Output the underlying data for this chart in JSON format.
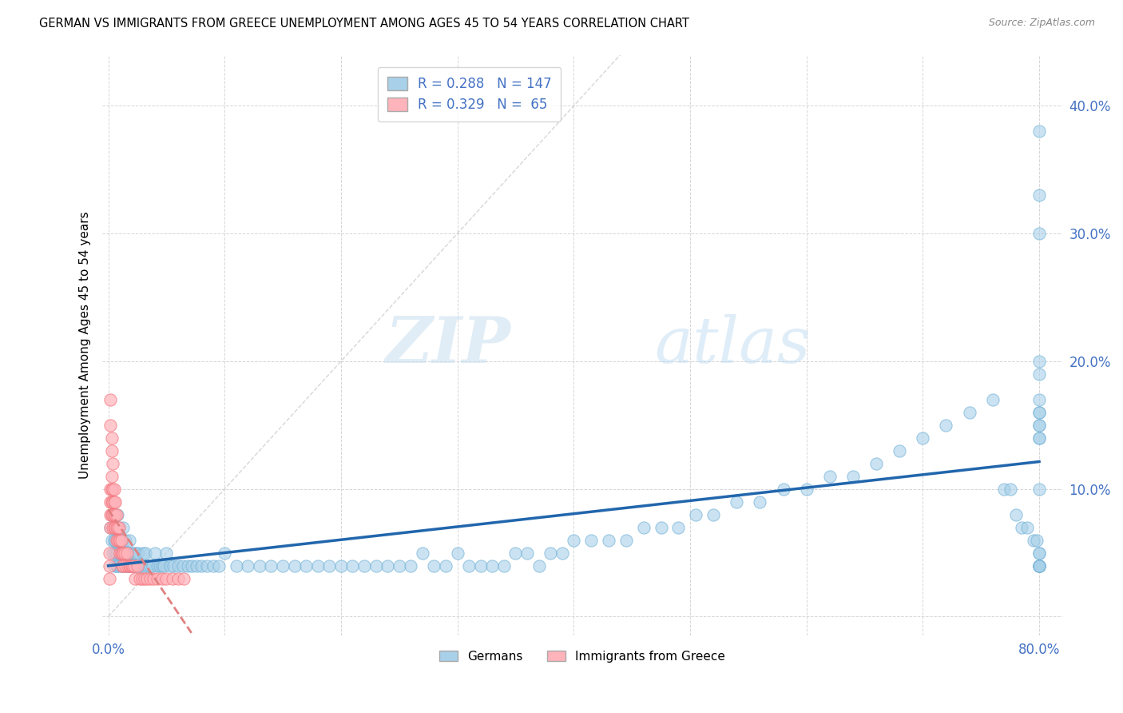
{
  "title": "GERMAN VS IMMIGRANTS FROM GREECE UNEMPLOYMENT AMONG AGES 45 TO 54 YEARS CORRELATION CHART",
  "source": "Source: ZipAtlas.com",
  "tick_color": "#4472c4",
  "ylabel": "Unemployment Among Ages 45 to 54 years",
  "xlim": [
    -0.005,
    0.82
  ],
  "ylim": [
    -0.015,
    0.44
  ],
  "xticks": [
    0.0,
    0.1,
    0.2,
    0.3,
    0.4,
    0.5,
    0.6,
    0.7,
    0.8
  ],
  "yticks": [
    0.0,
    0.1,
    0.2,
    0.3,
    0.4
  ],
  "german_color": "#a8d0e8",
  "german_edge_color": "#6baed6",
  "greece_color": "#ffb3ba",
  "greece_edge_color": "#f4777f",
  "german_line_color": "#2166ac",
  "greece_line_color": "#e08080",
  "diagonal_color": "#cccccc",
  "R_german": 0.288,
  "N_german": 147,
  "R_greece": 0.329,
  "N_greece": 65,
  "legend_labels": [
    "Germans",
    "Immigrants from Greece"
  ],
  "watermark_zip": "ZIP",
  "watermark_atlas": "atlas",
  "background_color": "#ffffff",
  "grid_color": "#cccccc",
  "x_german": [
    0.002,
    0.003,
    0.003,
    0.004,
    0.004,
    0.005,
    0.005,
    0.005,
    0.006,
    0.006,
    0.006,
    0.007,
    0.007,
    0.007,
    0.008,
    0.008,
    0.008,
    0.009,
    0.009,
    0.009,
    0.01,
    0.01,
    0.011,
    0.011,
    0.012,
    0.012,
    0.013,
    0.013,
    0.014,
    0.015,
    0.015,
    0.016,
    0.016,
    0.017,
    0.018,
    0.018,
    0.019,
    0.02,
    0.021,
    0.022,
    0.023,
    0.024,
    0.025,
    0.026,
    0.027,
    0.028,
    0.03,
    0.031,
    0.032,
    0.034,
    0.036,
    0.038,
    0.04,
    0.042,
    0.044,
    0.046,
    0.048,
    0.05,
    0.053,
    0.056,
    0.06,
    0.064,
    0.068,
    0.072,
    0.076,
    0.08,
    0.085,
    0.09,
    0.095,
    0.1,
    0.11,
    0.12,
    0.13,
    0.14,
    0.15,
    0.16,
    0.17,
    0.18,
    0.19,
    0.2,
    0.21,
    0.22,
    0.23,
    0.24,
    0.25,
    0.26,
    0.27,
    0.28,
    0.29,
    0.3,
    0.31,
    0.32,
    0.33,
    0.34,
    0.35,
    0.36,
    0.37,
    0.38,
    0.39,
    0.4,
    0.415,
    0.43,
    0.445,
    0.46,
    0.475,
    0.49,
    0.505,
    0.52,
    0.54,
    0.56,
    0.58,
    0.6,
    0.62,
    0.64,
    0.66,
    0.68,
    0.7,
    0.72,
    0.74,
    0.76,
    0.77,
    0.775,
    0.78,
    0.785,
    0.79,
    0.795,
    0.798,
    0.8,
    0.8,
    0.8,
    0.8,
    0.8,
    0.8,
    0.8,
    0.8,
    0.8,
    0.8,
    0.8,
    0.8,
    0.8,
    0.8,
    0.8,
    0.8,
    0.8,
    0.8,
    0.8,
    0.8
  ],
  "y_german": [
    0.07,
    0.06,
    0.08,
    0.05,
    0.09,
    0.04,
    0.06,
    0.07,
    0.05,
    0.08,
    0.06,
    0.04,
    0.07,
    0.05,
    0.06,
    0.08,
    0.04,
    0.05,
    0.07,
    0.06,
    0.05,
    0.04,
    0.06,
    0.05,
    0.04,
    0.06,
    0.05,
    0.07,
    0.04,
    0.05,
    0.06,
    0.04,
    0.05,
    0.04,
    0.05,
    0.06,
    0.04,
    0.05,
    0.04,
    0.05,
    0.04,
    0.05,
    0.04,
    0.05,
    0.04,
    0.04,
    0.05,
    0.04,
    0.05,
    0.04,
    0.04,
    0.04,
    0.05,
    0.04,
    0.04,
    0.04,
    0.04,
    0.05,
    0.04,
    0.04,
    0.04,
    0.04,
    0.04,
    0.04,
    0.04,
    0.04,
    0.04,
    0.04,
    0.04,
    0.05,
    0.04,
    0.04,
    0.04,
    0.04,
    0.04,
    0.04,
    0.04,
    0.04,
    0.04,
    0.04,
    0.04,
    0.04,
    0.04,
    0.04,
    0.04,
    0.04,
    0.05,
    0.04,
    0.04,
    0.05,
    0.04,
    0.04,
    0.04,
    0.04,
    0.05,
    0.05,
    0.04,
    0.05,
    0.05,
    0.06,
    0.06,
    0.06,
    0.06,
    0.07,
    0.07,
    0.07,
    0.08,
    0.08,
    0.09,
    0.09,
    0.1,
    0.1,
    0.11,
    0.11,
    0.12,
    0.13,
    0.14,
    0.15,
    0.16,
    0.17,
    0.1,
    0.1,
    0.08,
    0.07,
    0.07,
    0.06,
    0.06,
    0.38,
    0.33,
    0.3,
    0.2,
    0.19,
    0.17,
    0.16,
    0.16,
    0.15,
    0.15,
    0.14,
    0.14,
    0.1,
    0.05,
    0.05,
    0.04,
    0.04,
    0.04,
    0.04,
    0.04
  ],
  "x_greece": [
    0.001,
    0.001,
    0.001,
    0.002,
    0.002,
    0.002,
    0.002,
    0.003,
    0.003,
    0.003,
    0.003,
    0.004,
    0.004,
    0.004,
    0.004,
    0.005,
    0.005,
    0.005,
    0.005,
    0.006,
    0.006,
    0.006,
    0.007,
    0.007,
    0.007,
    0.008,
    0.008,
    0.009,
    0.009,
    0.01,
    0.01,
    0.011,
    0.011,
    0.012,
    0.012,
    0.013,
    0.013,
    0.014,
    0.015,
    0.016,
    0.017,
    0.018,
    0.019,
    0.02,
    0.021,
    0.022,
    0.023,
    0.025,
    0.027,
    0.029,
    0.031,
    0.033,
    0.036,
    0.039,
    0.042,
    0.046,
    0.05,
    0.055,
    0.06,
    0.065,
    0.002,
    0.002,
    0.003,
    0.003,
    0.004
  ],
  "y_greece": [
    0.05,
    0.04,
    0.03,
    0.1,
    0.09,
    0.08,
    0.07,
    0.11,
    0.1,
    0.09,
    0.08,
    0.1,
    0.09,
    0.08,
    0.07,
    0.1,
    0.09,
    0.08,
    0.07,
    0.09,
    0.08,
    0.07,
    0.08,
    0.07,
    0.06,
    0.07,
    0.06,
    0.07,
    0.06,
    0.06,
    0.05,
    0.06,
    0.05,
    0.05,
    0.04,
    0.05,
    0.04,
    0.05,
    0.04,
    0.05,
    0.04,
    0.04,
    0.04,
    0.04,
    0.04,
    0.04,
    0.03,
    0.04,
    0.03,
    0.03,
    0.03,
    0.03,
    0.03,
    0.03,
    0.03,
    0.03,
    0.03,
    0.03,
    0.03,
    0.03,
    0.17,
    0.15,
    0.14,
    0.13,
    0.12
  ]
}
